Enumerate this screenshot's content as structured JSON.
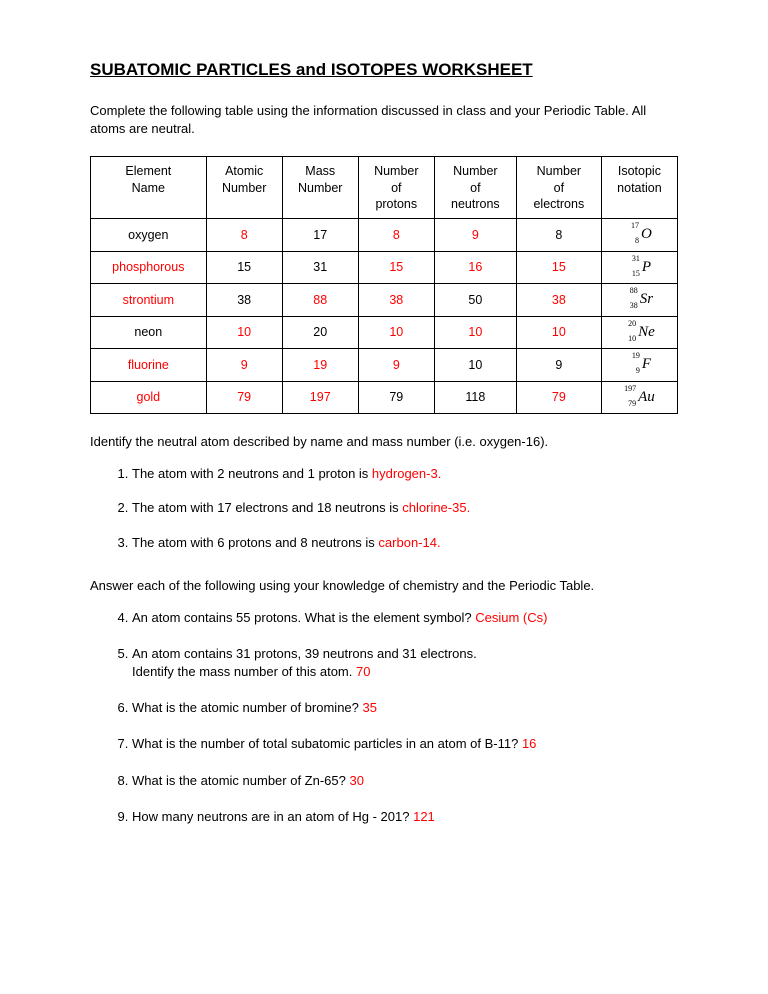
{
  "title": "SUBATOMIC PARTICLES and ISOTOPES WORKSHEET",
  "intro": "Complete the following table using the information discussed in class and your Periodic Table.  All atoms are neutral.",
  "table": {
    "headers": [
      "Element Name",
      "Atomic Number",
      "Mass Number",
      "Number of protons",
      "Number of neutrons",
      "Number of electrons",
      "Isotopic notation"
    ],
    "rows": [
      {
        "name": "oxygen",
        "nameRed": false,
        "atomic": "8",
        "atomicRed": true,
        "mass": "17",
        "massRed": false,
        "protons": "8",
        "protonsRed": true,
        "neutrons": "9",
        "neutronsRed": true,
        "electrons": "8",
        "electronsRed": false,
        "sym": "O",
        "nMass": "17",
        "nAtomic": "8"
      },
      {
        "name": "phosphorous",
        "nameRed": true,
        "atomic": "15",
        "atomicRed": false,
        "mass": "31",
        "massRed": false,
        "protons": "15",
        "protonsRed": true,
        "neutrons": "16",
        "neutronsRed": true,
        "electrons": "15",
        "electronsRed": true,
        "sym": "P",
        "nMass": "31",
        "nAtomic": "15"
      },
      {
        "name": "strontium",
        "nameRed": true,
        "atomic": "38",
        "atomicRed": false,
        "mass": "88",
        "massRed": true,
        "protons": "38",
        "protonsRed": true,
        "neutrons": "50",
        "neutronsRed": false,
        "electrons": "38",
        "electronsRed": true,
        "sym": "Sr",
        "nMass": "88",
        "nAtomic": "38"
      },
      {
        "name": "neon",
        "nameRed": false,
        "atomic": "10",
        "atomicRed": true,
        "mass": "20",
        "massRed": false,
        "protons": "10",
        "protonsRed": true,
        "neutrons": "10",
        "neutronsRed": true,
        "electrons": "10",
        "electronsRed": true,
        "sym": "Ne",
        "nMass": "20",
        "nAtomic": "10"
      },
      {
        "name": "fluorine",
        "nameRed": true,
        "atomic": "9",
        "atomicRed": true,
        "mass": "19",
        "massRed": true,
        "protons": "9",
        "protonsRed": true,
        "neutrons": "10",
        "neutronsRed": false,
        "electrons": "9",
        "electronsRed": false,
        "sym": "F",
        "nMass": "19",
        "nAtomic": "9"
      },
      {
        "name": "gold",
        "nameRed": true,
        "atomic": "79",
        "atomicRed": true,
        "mass": "197",
        "massRed": true,
        "protons": "79",
        "protonsRed": false,
        "neutrons": "118",
        "neutronsRed": false,
        "electrons": "79",
        "electronsRed": true,
        "sym": "Au",
        "nMass": "197",
        "nAtomic": "79"
      }
    ]
  },
  "identify_intro": "Identify the neutral atom described by name and mass number (i.e. oxygen-16).",
  "q1": {
    "text": "The atom with 2 neutrons and 1 proton is ",
    "ans": "hydrogen-3."
  },
  "q2": {
    "text": "The atom with 17 electrons and 18 neutrons is ",
    "ans": "chlorine-35."
  },
  "q3": {
    "text": "The atom with 6 protons and 8 neutrons is ",
    "ans": "carbon-14."
  },
  "answer_intro": "Answer each of the following using your knowledge of chemistry and the Periodic Table.",
  "q4": {
    "text": "An atom contains 55 protons.  What is the element symbol?  ",
    "ans": "Cesium (Cs)"
  },
  "q5a": "An atom contains 31 protons, 39 neutrons and 31 electrons.",
  "q5b": "Identify the mass number of this atom.  ",
  "q5ans": "70",
  "q6": {
    "text": "What is the atomic number of bromine?  ",
    "ans": "35"
  },
  "q7": {
    "text": "What is the number of total subatomic particles in an atom of B-11? ",
    "ans": "16"
  },
  "q8": {
    "text": "What is the atomic number of Zn-65?     ",
    "ans": "30"
  },
  "q9": {
    "text": "How many neutrons are in an atom of Hg - 201?  ",
    "ans": "121"
  }
}
